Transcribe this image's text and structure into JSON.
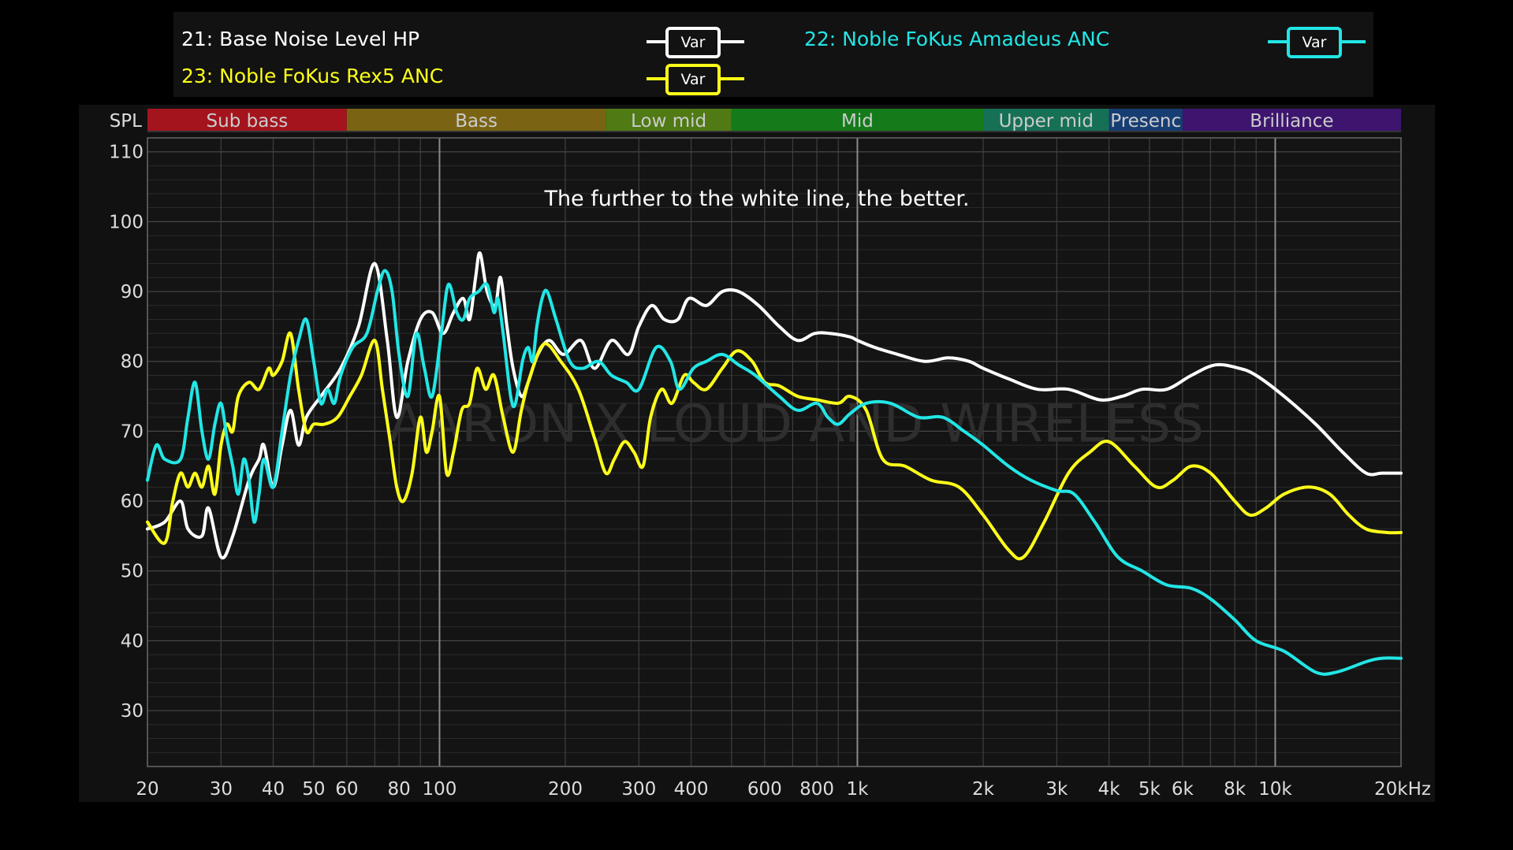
{
  "legend": [
    {
      "label": "21: Base Noise Level HP",
      "color": "#ffffff",
      "button": "Var"
    },
    {
      "label": "22: Noble FoKus Amadeus ANC",
      "color": "#22e6e6",
      "button": "Var"
    },
    {
      "label": "23: Noble FoKus Rex5 ANC",
      "color": "#ffff1a",
      "button": "Var"
    }
  ],
  "bands": [
    {
      "label": "Sub bass",
      "from": 20,
      "to": 60,
      "color": "#a3141d"
    },
    {
      "label": "Bass",
      "from": 60,
      "to": 250,
      "color": "#7a6414"
    },
    {
      "label": "Low mid",
      "from": 250,
      "to": 500,
      "color": "#4f7a14"
    },
    {
      "label": "Mid",
      "from": 500,
      "to": 2000,
      "color": "#157a1a"
    },
    {
      "label": "Upper mid",
      "from": 2000,
      "to": 4000,
      "color": "#167055"
    },
    {
      "label": "Presenc",
      "from": 4000,
      "to": 6000,
      "color": "#173e73"
    },
    {
      "label": "Brilliance",
      "from": 6000,
      "to": 20000,
      "color": "#3d156e"
    }
  ],
  "chart_data": {
    "type": "line",
    "ylabel": "SPL",
    "xunit": "kHz",
    "xscale": "log",
    "xlim": [
      20,
      20000
    ],
    "ylim": [
      22,
      112
    ],
    "annotation": "The further to the white line, the better.",
    "watermark": "AARON X LOUD AND WIRELESS",
    "yticks": [
      110,
      100,
      90,
      80,
      70,
      60,
      50,
      40,
      30
    ],
    "xticks": [
      {
        "v": 20,
        "label": "20"
      },
      {
        "v": 30,
        "label": "30"
      },
      {
        "v": 40,
        "label": "40"
      },
      {
        "v": 50,
        "label": "50"
      },
      {
        "v": 60,
        "label": "60"
      },
      {
        "v": 80,
        "label": "80"
      },
      {
        "v": 100,
        "label": "100"
      },
      {
        "v": 200,
        "label": "200"
      },
      {
        "v": 300,
        "label": "300"
      },
      {
        "v": 400,
        "label": "400"
      },
      {
        "v": 600,
        "label": "600"
      },
      {
        "v": 800,
        "label": "800"
      },
      {
        "v": 1000,
        "label": "1k"
      },
      {
        "v": 2000,
        "label": "2k"
      },
      {
        "v": 3000,
        "label": "3k"
      },
      {
        "v": 4000,
        "label": "4k"
      },
      {
        "v": 5000,
        "label": "5k"
      },
      {
        "v": 6000,
        "label": "6k"
      },
      {
        "v": 8000,
        "label": "8k"
      },
      {
        "v": 10000,
        "label": "10k"
      },
      {
        "v": 20000,
        "label": "20kHz"
      }
    ],
    "series": [
      {
        "name": "21: Base Noise Level HP",
        "color": "#ffffff",
        "points": [
          [
            20,
            56
          ],
          [
            22,
            57
          ],
          [
            24,
            60
          ],
          [
            25,
            56
          ],
          [
            27,
            55
          ],
          [
            28,
            59
          ],
          [
            30,
            52
          ],
          [
            32,
            55
          ],
          [
            35,
            63
          ],
          [
            37,
            66
          ],
          [
            38,
            68
          ],
          [
            40,
            62
          ],
          [
            42,
            68
          ],
          [
            44,
            73
          ],
          [
            46,
            68
          ],
          [
            48,
            72
          ],
          [
            52,
            75
          ],
          [
            58,
            79
          ],
          [
            64,
            85
          ],
          [
            70,
            94
          ],
          [
            75,
            83
          ],
          [
            79,
            72
          ],
          [
            84,
            80
          ],
          [
            90,
            86
          ],
          [
            96,
            87
          ],
          [
            102,
            84
          ],
          [
            108,
            87
          ],
          [
            114,
            89
          ],
          [
            118,
            86
          ],
          [
            122,
            92
          ],
          [
            125,
            95.5
          ],
          [
            130,
            90
          ],
          [
            136,
            88
          ],
          [
            140,
            92
          ],
          [
            145,
            85
          ],
          [
            150,
            79
          ],
          [
            157,
            75
          ],
          [
            163,
            77
          ],
          [
            172,
            81
          ],
          [
            183,
            83
          ],
          [
            198,
            81
          ],
          [
            218,
            83
          ],
          [
            235,
            79
          ],
          [
            258,
            83
          ],
          [
            283,
            81
          ],
          [
            300,
            85
          ],
          [
            322,
            88
          ],
          [
            345,
            86
          ],
          [
            372,
            86
          ],
          [
            395,
            89
          ],
          [
            435,
            88
          ],
          [
            475,
            90
          ],
          [
            520,
            90
          ],
          [
            580,
            88
          ],
          [
            650,
            85
          ],
          [
            720,
            83
          ],
          [
            790,
            84
          ],
          [
            860,
            84
          ],
          [
            960,
            83.5
          ],
          [
            1000,
            83
          ],
          [
            1100,
            82
          ],
          [
            1250,
            81
          ],
          [
            1450,
            80
          ],
          [
            1650,
            80.5
          ],
          [
            1850,
            80
          ],
          [
            2000,
            79
          ],
          [
            2300,
            77.5
          ],
          [
            2700,
            76
          ],
          [
            3200,
            76
          ],
          [
            3800,
            74.5
          ],
          [
            4300,
            75
          ],
          [
            4800,
            76
          ],
          [
            5500,
            76
          ],
          [
            6300,
            78
          ],
          [
            7200,
            79.5
          ],
          [
            8200,
            79
          ],
          [
            9000,
            78
          ],
          [
            10500,
            75
          ],
          [
            12500,
            71
          ],
          [
            14500,
            67
          ],
          [
            16500,
            64
          ],
          [
            18000,
            64
          ],
          [
            20000,
            64
          ]
        ]
      },
      {
        "name": "22: Noble FoKus Amadeus ANC",
        "color": "#22e6e6",
        "points": [
          [
            20,
            63
          ],
          [
            21,
            68
          ],
          [
            22,
            66
          ],
          [
            24,
            66
          ],
          [
            25,
            72
          ],
          [
            26,
            77
          ],
          [
            27,
            70
          ],
          [
            28,
            66
          ],
          [
            29,
            71
          ],
          [
            30,
            74
          ],
          [
            31,
            69
          ],
          [
            32,
            65
          ],
          [
            33,
            61
          ],
          [
            34,
            66
          ],
          [
            35,
            63
          ],
          [
            36,
            57
          ],
          [
            37,
            61
          ],
          [
            38,
            66
          ],
          [
            40,
            62
          ],
          [
            42,
            70
          ],
          [
            44,
            78
          ],
          [
            46,
            83
          ],
          [
            48,
            86
          ],
          [
            50,
            80
          ],
          [
            52,
            74
          ],
          [
            54,
            76
          ],
          [
            56,
            74
          ],
          [
            58,
            78
          ],
          [
            62,
            82
          ],
          [
            67,
            84
          ],
          [
            71,
            90
          ],
          [
            74,
            93
          ],
          [
            77,
            90
          ],
          [
            80,
            81
          ],
          [
            84,
            75
          ],
          [
            88,
            84
          ],
          [
            92,
            79
          ],
          [
            96,
            75
          ],
          [
            101,
            84
          ],
          [
            105,
            91
          ],
          [
            110,
            87
          ],
          [
            114,
            86
          ],
          [
            118,
            89
          ],
          [
            124,
            90
          ],
          [
            130,
            91
          ],
          [
            135,
            87
          ],
          [
            138,
            89
          ],
          [
            142,
            84
          ],
          [
            148,
            75
          ],
          [
            152,
            74
          ],
          [
            158,
            80
          ],
          [
            163,
            82
          ],
          [
            167,
            80
          ],
          [
            171,
            85
          ],
          [
            176,
            89
          ],
          [
            181,
            90
          ],
          [
            190,
            86
          ],
          [
            205,
            80
          ],
          [
            220,
            79
          ],
          [
            240,
            80
          ],
          [
            258,
            78
          ],
          [
            280,
            77
          ],
          [
            300,
            76
          ],
          [
            330,
            82
          ],
          [
            357,
            80
          ],
          [
            375,
            76
          ],
          [
            405,
            79
          ],
          [
            435,
            80
          ],
          [
            475,
            81
          ],
          [
            520,
            79.5
          ],
          [
            570,
            78
          ],
          [
            650,
            75
          ],
          [
            720,
            73
          ],
          [
            800,
            74
          ],
          [
            850,
            72
          ],
          [
            900,
            71
          ],
          [
            960,
            72.5
          ],
          [
            1050,
            74
          ],
          [
            1200,
            74
          ],
          [
            1400,
            72
          ],
          [
            1600,
            72
          ],
          [
            1800,
            70
          ],
          [
            2000,
            68
          ],
          [
            2300,
            65
          ],
          [
            2600,
            63
          ],
          [
            3000,
            61.5
          ],
          [
            3300,
            61
          ],
          [
            3700,
            57
          ],
          [
            4200,
            52
          ],
          [
            4800,
            50
          ],
          [
            5500,
            48
          ],
          [
            6300,
            47.5
          ],
          [
            7000,
            46
          ],
          [
            8000,
            43
          ],
          [
            9000,
            40
          ],
          [
            10500,
            38.5
          ],
          [
            12500,
            35.5
          ],
          [
            14000,
            35.5
          ],
          [
            16500,
            37
          ],
          [
            18000,
            37.5
          ],
          [
            20000,
            37.5
          ]
        ]
      },
      {
        "name": "23: Noble FoKus Rex5 ANC",
        "color": "#ffff1a",
        "points": [
          [
            20,
            57
          ],
          [
            22,
            54
          ],
          [
            23,
            60
          ],
          [
            24,
            64
          ],
          [
            25,
            62
          ],
          [
            26,
            64
          ],
          [
            27,
            62
          ],
          [
            28,
            65
          ],
          [
            29,
            61
          ],
          [
            30,
            68
          ],
          [
            31,
            71
          ],
          [
            32,
            70
          ],
          [
            33,
            75
          ],
          [
            35,
            77
          ],
          [
            37,
            76
          ],
          [
            39,
            79
          ],
          [
            40,
            78
          ],
          [
            42,
            80
          ],
          [
            44,
            84
          ],
          [
            46,
            76
          ],
          [
            48,
            70
          ],
          [
            50,
            71
          ],
          [
            53,
            71
          ],
          [
            57,
            72
          ],
          [
            61,
            75
          ],
          [
            65,
            78
          ],
          [
            70,
            83
          ],
          [
            73,
            76
          ],
          [
            76,
            69
          ],
          [
            79,
            62
          ],
          [
            82,
            60
          ],
          [
            86,
            64
          ],
          [
            90,
            72
          ],
          [
            93,
            67
          ],
          [
            96,
            70
          ],
          [
            100,
            75
          ],
          [
            104,
            64
          ],
          [
            108,
            67
          ],
          [
            113,
            73
          ],
          [
            118,
            74
          ],
          [
            123,
            79
          ],
          [
            129,
            76
          ],
          [
            135,
            78
          ],
          [
            142,
            72
          ],
          [
            150,
            67
          ],
          [
            157,
            73
          ],
          [
            165,
            78
          ],
          [
            178,
            82.5
          ],
          [
            195,
            80
          ],
          [
            215,
            76
          ],
          [
            235,
            69
          ],
          [
            250,
            64
          ],
          [
            262,
            66
          ],
          [
            277,
            68.5
          ],
          [
            292,
            67
          ],
          [
            307,
            65
          ],
          [
            320,
            72
          ],
          [
            340,
            76
          ],
          [
            360,
            74
          ],
          [
            385,
            78
          ],
          [
            405,
            77
          ],
          [
            435,
            76
          ],
          [
            475,
            79
          ],
          [
            515,
            81.5
          ],
          [
            560,
            80
          ],
          [
            600,
            77
          ],
          [
            650,
            76.5
          ],
          [
            720,
            75
          ],
          [
            800,
            74.5
          ],
          [
            900,
            74
          ],
          [
            960,
            75
          ],
          [
            1050,
            73
          ],
          [
            1150,
            66
          ],
          [
            1300,
            65
          ],
          [
            1500,
            63
          ],
          [
            1750,
            62
          ],
          [
            2000,
            58
          ],
          [
            2300,
            53
          ],
          [
            2500,
            52
          ],
          [
            2800,
            57
          ],
          [
            3200,
            64
          ],
          [
            3600,
            67
          ],
          [
            4000,
            68.5
          ],
          [
            4600,
            65
          ],
          [
            5200,
            62
          ],
          [
            5700,
            63
          ],
          [
            6300,
            65
          ],
          [
            7000,
            64
          ],
          [
            8000,
            60
          ],
          [
            8700,
            58
          ],
          [
            9500,
            59
          ],
          [
            10500,
            61
          ],
          [
            12000,
            62
          ],
          [
            13500,
            61
          ],
          [
            15000,
            58
          ],
          [
            16500,
            56
          ],
          [
            18500,
            55.5
          ],
          [
            20000,
            55.5
          ]
        ]
      }
    ]
  }
}
